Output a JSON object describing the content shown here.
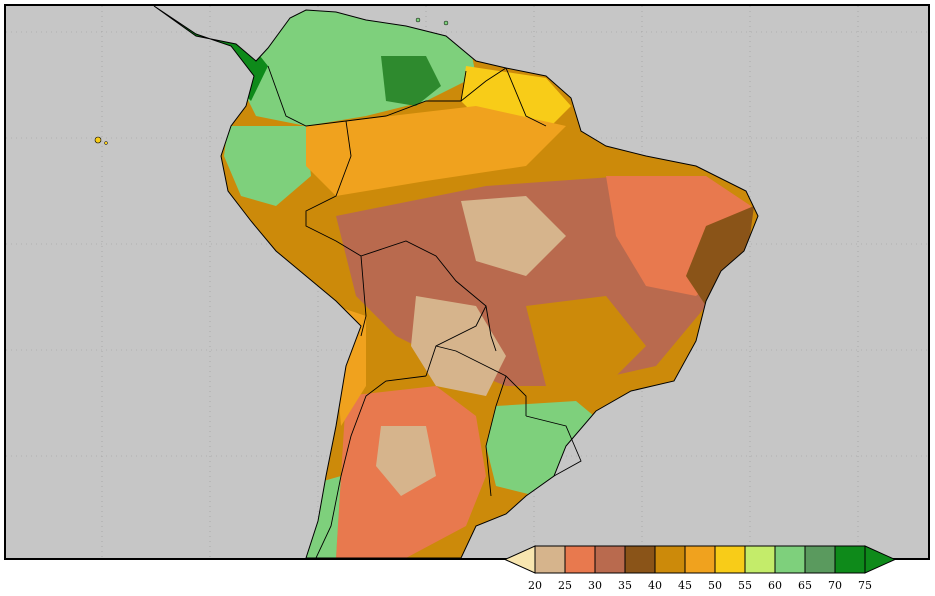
{
  "legend": {
    "ticks": [
      "20",
      "25",
      "30",
      "35",
      "40",
      "45",
      "50",
      "55",
      "60",
      "65",
      "70",
      "75"
    ],
    "colors": {
      "below": "#f8e6b0",
      "bins": [
        "#d6b48c",
        "#e8794e",
        "#b96a4e",
        "#8a5418",
        "#cc8a0a",
        "#f0a21e",
        "#f8cc18",
        "#c4ec6a",
        "#7ed07c",
        "#5a9a5e",
        "#0e8a1a"
      ],
      "above": "#0e8a1a"
    }
  },
  "map": {
    "ocean_color": "#c6c6c6",
    "border_color": "#000000",
    "gridline_color": "#9a9a9a"
  }
}
